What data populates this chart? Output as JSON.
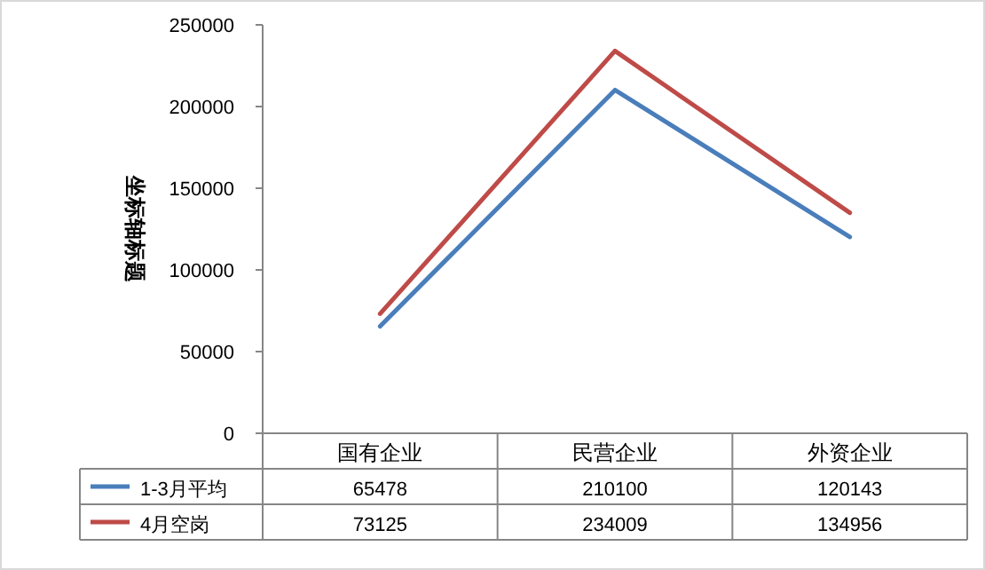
{
  "chart_data": {
    "type": "line",
    "ylabel": "坐标轴标题",
    "categories": [
      "国有企业",
      "民营企业",
      "外资企业"
    ],
    "series": [
      {
        "name": "1-3月平均",
        "color": "#4a7ebb",
        "values": [
          65478,
          210100,
          120143
        ]
      },
      {
        "name": "4月空岗",
        "color": "#be4b48",
        "values": [
          73125,
          234009,
          134956
        ]
      }
    ],
    "ylim": [
      0,
      250000
    ],
    "yticks": [
      0,
      50000,
      100000,
      150000,
      200000,
      250000
    ],
    "data_labels": true,
    "legend": "bottom"
  }
}
